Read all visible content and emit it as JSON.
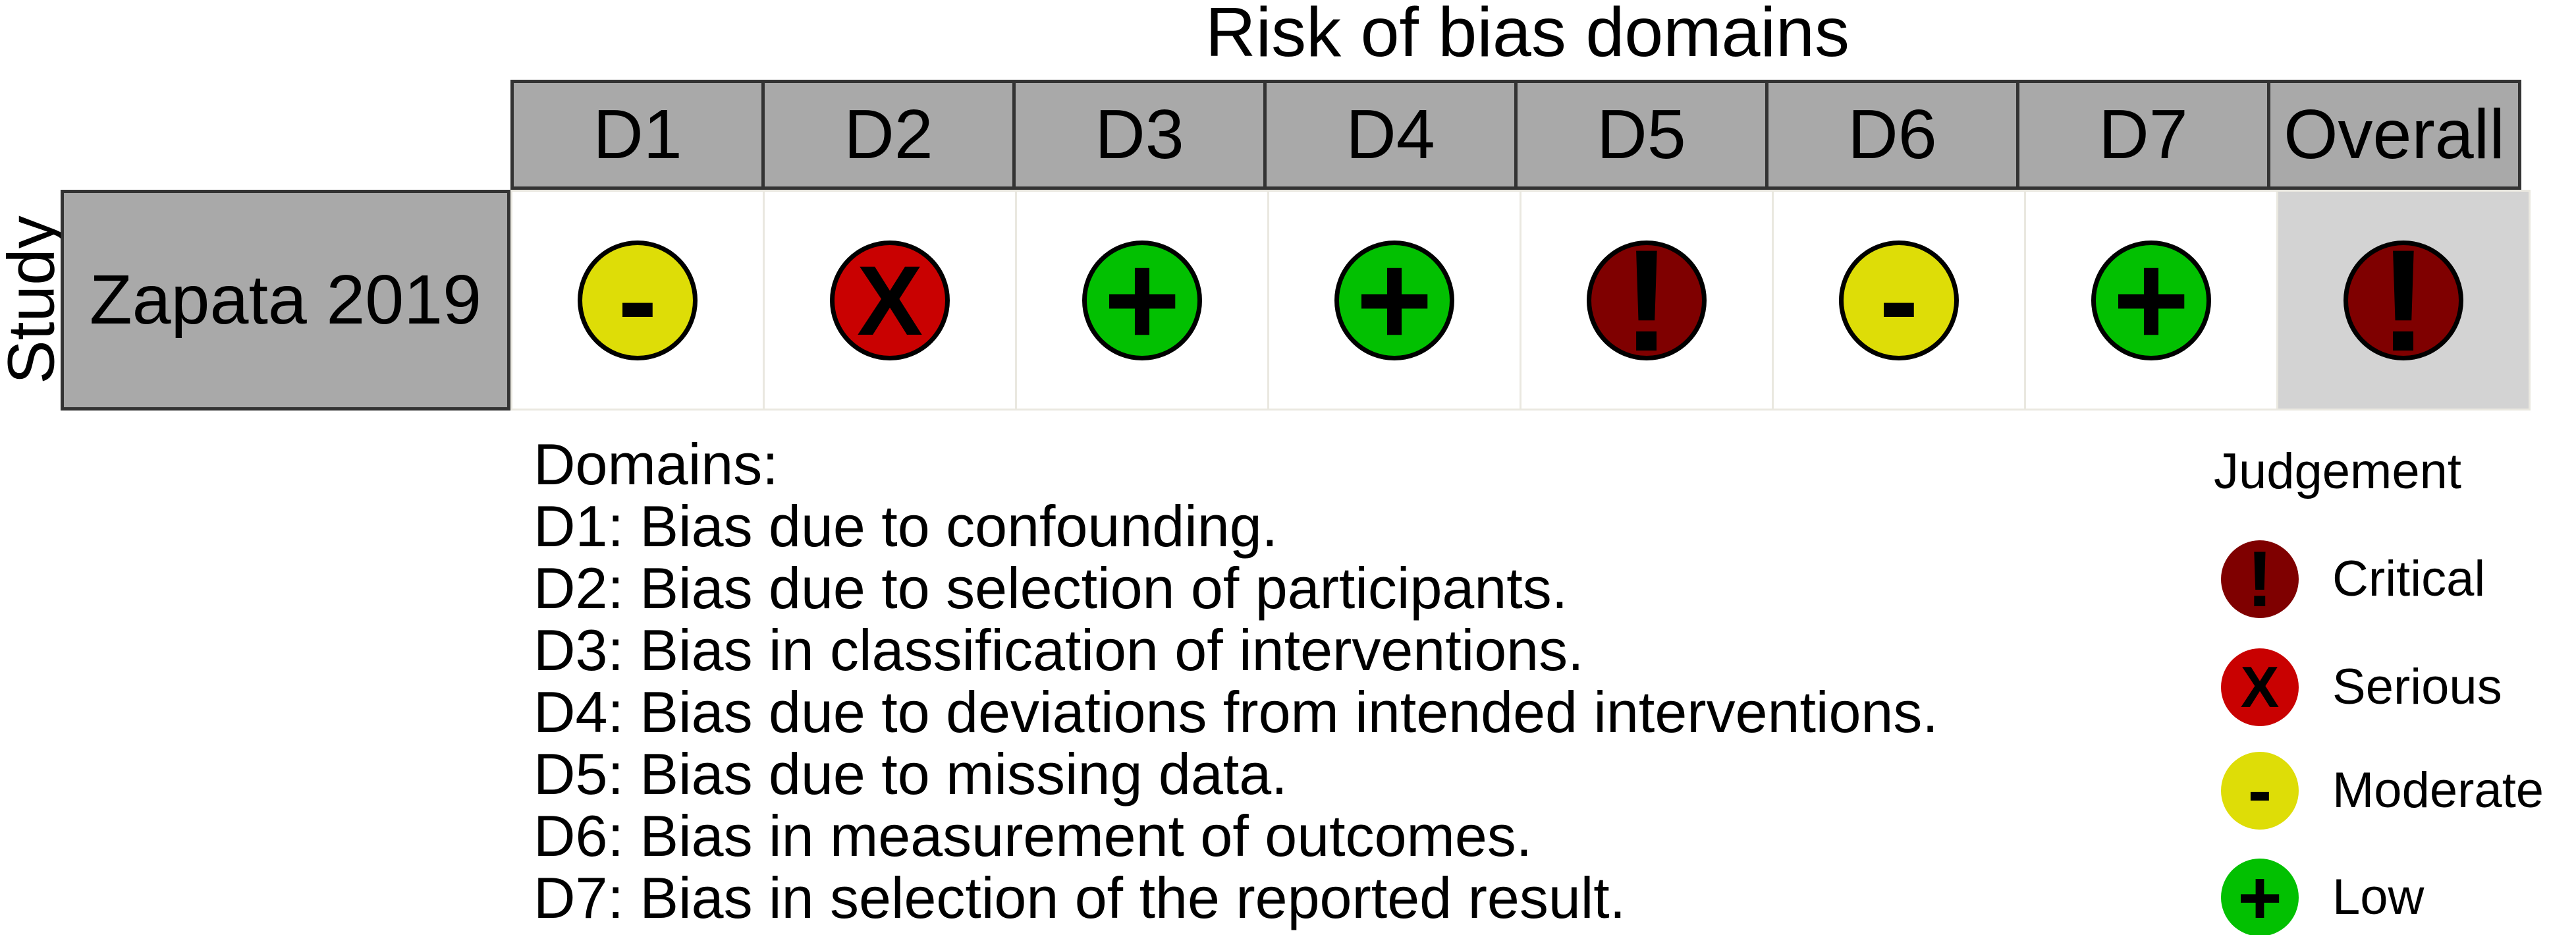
{
  "title": "Risk of bias domains",
  "table": {
    "corner_label": "Study",
    "columns": [
      "D1",
      "D2",
      "D3",
      "D4",
      "D5",
      "D6",
      "D7",
      "Overall"
    ],
    "rows": [
      {
        "study": "Zapata 2019",
        "cells": [
          "moderate",
          "serious",
          "low",
          "low",
          "critical",
          "moderate",
          "low",
          "critical"
        ]
      }
    ]
  },
  "judgements": {
    "critical": {
      "label": "Critical",
      "symbol": "!",
      "color": "#7f0000"
    },
    "serious": {
      "label": "Serious",
      "symbol": "X",
      "color": "#c90101"
    },
    "moderate": {
      "label": "Moderate",
      "symbol": "-",
      "color": "#dedd07"
    },
    "low": {
      "label": "Low",
      "symbol": "+",
      "color": "#02c001"
    }
  },
  "judgement_legend": {
    "heading": "Judgement",
    "order": [
      "critical",
      "serious",
      "moderate",
      "low"
    ]
  },
  "domains_legend": {
    "heading": "Domains:",
    "items": [
      "D1: Bias due to confounding.",
      "D2: Bias due to selection of participants.",
      "D3: Bias in classification of interventions.",
      "D4: Bias due to deviations from intended interventions.",
      "D5: Bias due to missing data.",
      "D6: Bias in measurement of outcomes.",
      "D7: Bias in selection of the reported result."
    ]
  },
  "colors": {
    "header_bg": "#a9a9a9",
    "overall_cell_bg": "#d3d3d3",
    "grid_dark": "#333333",
    "grid_light": "#eae8e0",
    "symbol": "#000000"
  },
  "chart_data": {
    "type": "table",
    "title": "Risk of bias domains",
    "x_categories": [
      "D1",
      "D2",
      "D3",
      "D4",
      "D5",
      "D6",
      "D7",
      "Overall"
    ],
    "y_categories": [
      "Zapata 2019"
    ],
    "values": [
      [
        "Moderate",
        "Serious",
        "Low",
        "Low",
        "Critical",
        "Moderate",
        "Low",
        "Critical"
      ]
    ],
    "legend_title": "Judgement",
    "legend_entries": [
      "Critical",
      "Serious",
      "Moderate",
      "Low"
    ],
    "legend_position": "bottom-right",
    "notes": "Traffic-light risk-of-bias plot (ROBINS-I style); Overall column shaded light gray"
  }
}
